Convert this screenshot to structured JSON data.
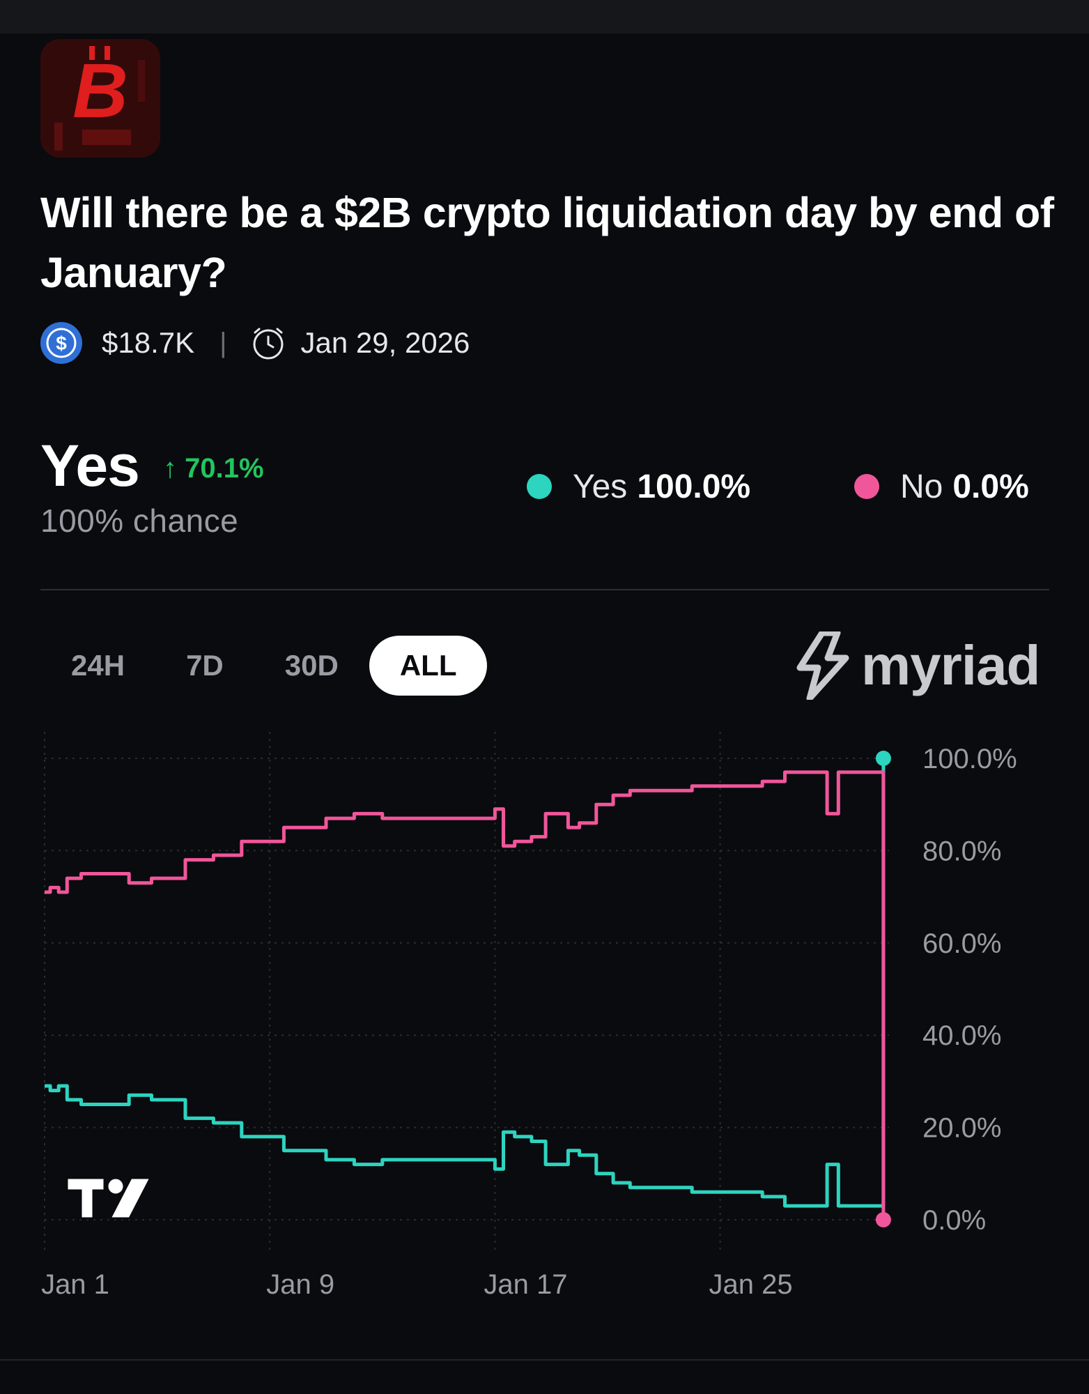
{
  "market": {
    "icon": "bitcoin-red-icon",
    "icon_letter": "B",
    "title": "Will there be a $2B crypto liquidation day by end of January?",
    "volume": "$18.7K",
    "volume_icon": "usdc-coin-icon",
    "separator": "|",
    "end_date": "Jan 29, 2026",
    "date_icon": "clock-icon"
  },
  "outcome": {
    "name": "Yes",
    "change": "↑ 70.1%",
    "chance": "100% chance"
  },
  "legend": [
    {
      "label": "Yes",
      "value": "100.0%",
      "color": "#2dd4bf"
    },
    {
      "label": "No",
      "value": "0.0%",
      "color": "#f0569a"
    }
  ],
  "tabs": [
    {
      "label": "24H",
      "active": false
    },
    {
      "label": "7D",
      "active": false
    },
    {
      "label": "30D",
      "active": false
    },
    {
      "label": "ALL",
      "active": true
    }
  ],
  "brand": {
    "name": "myriad",
    "icon": "myriad-bolt-icon"
  },
  "chart_data": {
    "type": "line",
    "x_tick_labels": [
      "Jan 1",
      "Jan 9",
      "Jan 17",
      "Jan 25"
    ],
    "y_tick_labels": [
      "100.0%",
      "80.0%",
      "60.0%",
      "40.0%",
      "20.0%",
      "0.0%"
    ],
    "ylim": [
      0,
      100
    ],
    "xlim": [
      1,
      31
    ],
    "grid": true,
    "series": [
      {
        "name": "Yes",
        "color": "#2dd4bf",
        "x": [
          1.0,
          1.2,
          1.5,
          1.8,
          2.3,
          3.0,
          4.0,
          4.8,
          6.0,
          7.0,
          8.0,
          9.5,
          11.0,
          12.0,
          13.0,
          14.0,
          15.0,
          16.0,
          16.8,
          17.0,
          17.3,
          17.7,
          18.3,
          18.8,
          19.6,
          20.0,
          20.6,
          21.2,
          21.8,
          22.6,
          24.0,
          25.5,
          26.5,
          27.3,
          28.0,
          28.5,
          28.8,
          29.2,
          29.7,
          30.5,
          30.7,
          30.8
        ],
        "y": [
          29,
          28,
          29,
          26,
          25,
          25,
          27,
          26,
          22,
          21,
          18,
          15,
          13,
          12,
          13,
          13,
          13,
          13,
          13,
          11,
          19,
          18,
          17,
          12,
          15,
          14,
          10,
          8,
          7,
          7,
          6,
          6,
          5,
          3,
          3,
          3,
          12,
          3,
          3,
          3,
          3,
          100
        ]
      },
      {
        "name": "No",
        "color": "#f0569a",
        "x": [
          1.0,
          1.2,
          1.5,
          1.8,
          2.3,
          3.0,
          4.0,
          4.8,
          6.0,
          7.0,
          8.0,
          9.5,
          11.0,
          12.0,
          13.0,
          14.0,
          15.0,
          16.0,
          16.8,
          17.0,
          17.3,
          17.7,
          18.3,
          18.8,
          19.6,
          20.0,
          20.6,
          21.2,
          21.8,
          22.6,
          24.0,
          25.5,
          26.5,
          27.3,
          28.0,
          28.5,
          28.8,
          29.2,
          29.7,
          30.5,
          30.7,
          30.8
        ],
        "y": [
          71,
          72,
          71,
          74,
          75,
          75,
          73,
          74,
          78,
          79,
          82,
          85,
          87,
          88,
          87,
          87,
          87,
          87,
          87,
          89,
          81,
          82,
          83,
          88,
          85,
          86,
          90,
          92,
          93,
          93,
          94,
          94,
          95,
          97,
          97,
          97,
          88,
          97,
          97,
          97,
          97,
          0
        ]
      }
    ]
  }
}
